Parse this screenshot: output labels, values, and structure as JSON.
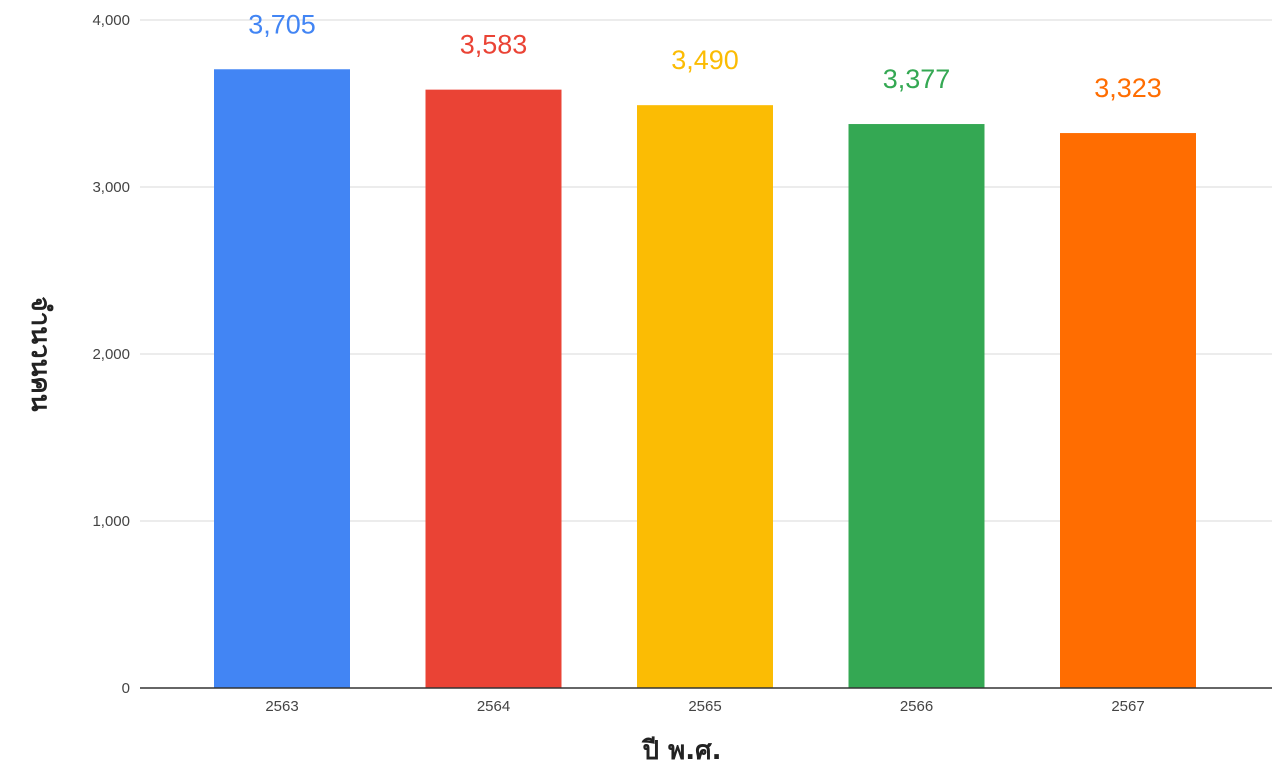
{
  "chart_data": {
    "type": "bar",
    "categories": [
      "2563",
      "2564",
      "2565",
      "2566",
      "2567"
    ],
    "values": [
      3705,
      3583,
      3490,
      3377,
      3323
    ],
    "value_labels": [
      "3,705",
      "3,583",
      "3,490",
      "3,377",
      "3,323"
    ],
    "colors": [
      "#4285F4",
      "#EA4335",
      "#FBBC04",
      "#34A853",
      "#FF6D01"
    ],
    "title": "",
    "xlabel": "ปี พ.ศ.",
    "ylabel": "จำนวนคน",
    "ylim": [
      0,
      4000
    ],
    "yticks": [
      0,
      1000,
      2000,
      3000,
      4000
    ],
    "ytick_labels": [
      "0",
      "1,000",
      "2,000",
      "3,000",
      "4,000"
    ],
    "grid": true,
    "legend": "none"
  }
}
